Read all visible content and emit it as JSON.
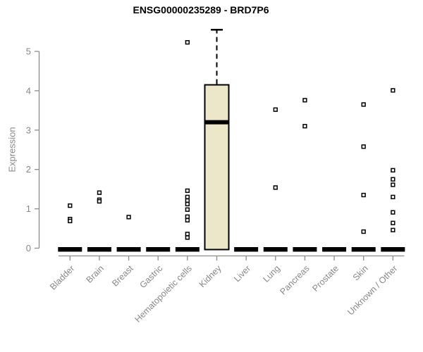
{
  "page": {
    "background": "#ffffff"
  },
  "chart_data": {
    "type": "boxplot",
    "title": "ENSG00000235289 - BRD7P6",
    "ylabel": "Expression",
    "xlabel": "",
    "ylim": [
      0,
      5.6
    ],
    "yticks": [
      0,
      1,
      2,
      3,
      4,
      5
    ],
    "grid": false,
    "legend": "none",
    "colors": {
      "box_fill": "#ece7c8",
      "box_stroke": "#000000",
      "median": "#000000",
      "axis": "#8c8c8c",
      "tick_label": "#888888",
      "title": "#000000",
      "outlier_fill": "#ffffff",
      "outlier_stroke": "#000000"
    },
    "categories": [
      "Bladder",
      "Brain",
      "Breast",
      "Gastric",
      "Hematopoietic cells",
      "Kidney",
      "Liver",
      "Lung",
      "Pancreas",
      "Prostate",
      "Skin",
      "Unknown / Other"
    ],
    "series": [
      {
        "category": "Bladder",
        "q1": 0,
        "median": 0,
        "q3": 0,
        "whisker_low": 0,
        "whisker_high": 0,
        "outliers": [
          1.08,
          0.74,
          0.69
        ]
      },
      {
        "category": "Brain",
        "q1": 0,
        "median": 0,
        "q3": 0,
        "whisker_low": 0,
        "whisker_high": 0,
        "outliers": [
          1.41,
          1.23,
          1.19
        ]
      },
      {
        "category": "Breast",
        "q1": 0,
        "median": 0,
        "q3": 0,
        "whisker_low": 0,
        "whisker_high": 0,
        "outliers": [
          0.79
        ]
      },
      {
        "category": "Gastric",
        "q1": 0,
        "median": 0,
        "q3": 0,
        "whisker_low": 0,
        "whisker_high": 0,
        "outliers": []
      },
      {
        "category": "Hematopoietic cells",
        "q1": 0,
        "median": 0,
        "q3": 0,
        "whisker_low": 0,
        "whisker_high": 0,
        "outliers": [
          5.23,
          1.46,
          1.3,
          1.21,
          1.12,
          0.98,
          0.8,
          0.71,
          0.36,
          0.27
        ]
      },
      {
        "category": "Kidney",
        "q1": 0,
        "median": 3.2,
        "q3": 4.15,
        "whisker_low": 0,
        "whisker_high": 5.55,
        "outliers": []
      },
      {
        "category": "Liver",
        "q1": 0,
        "median": 0,
        "q3": 0,
        "whisker_low": 0,
        "whisker_high": 0,
        "outliers": []
      },
      {
        "category": "Lung",
        "q1": 0,
        "median": 0,
        "q3": 0,
        "whisker_low": 0,
        "whisker_high": 0,
        "outliers": [
          3.52,
          1.54
        ]
      },
      {
        "category": "Pancreas",
        "q1": 0,
        "median": 0,
        "q3": 0,
        "whisker_low": 0,
        "whisker_high": 0,
        "outliers": [
          3.76,
          3.1
        ]
      },
      {
        "category": "Prostate",
        "q1": 0,
        "median": 0,
        "q3": 0,
        "whisker_low": 0,
        "whisker_high": 0,
        "outliers": []
      },
      {
        "category": "Skin",
        "q1": 0,
        "median": 0,
        "q3": 0,
        "whisker_low": 0,
        "whisker_high": 0,
        "outliers": [
          3.65,
          2.58,
          1.35,
          0.42
        ]
      },
      {
        "category": "Unknown / Other",
        "q1": 0,
        "median": 0,
        "q3": 0,
        "whisker_low": 0,
        "whisker_high": 0,
        "outliers": [
          4.01,
          1.98,
          1.75,
          1.61,
          1.3,
          0.91,
          0.64,
          0.46
        ]
      }
    ]
  }
}
